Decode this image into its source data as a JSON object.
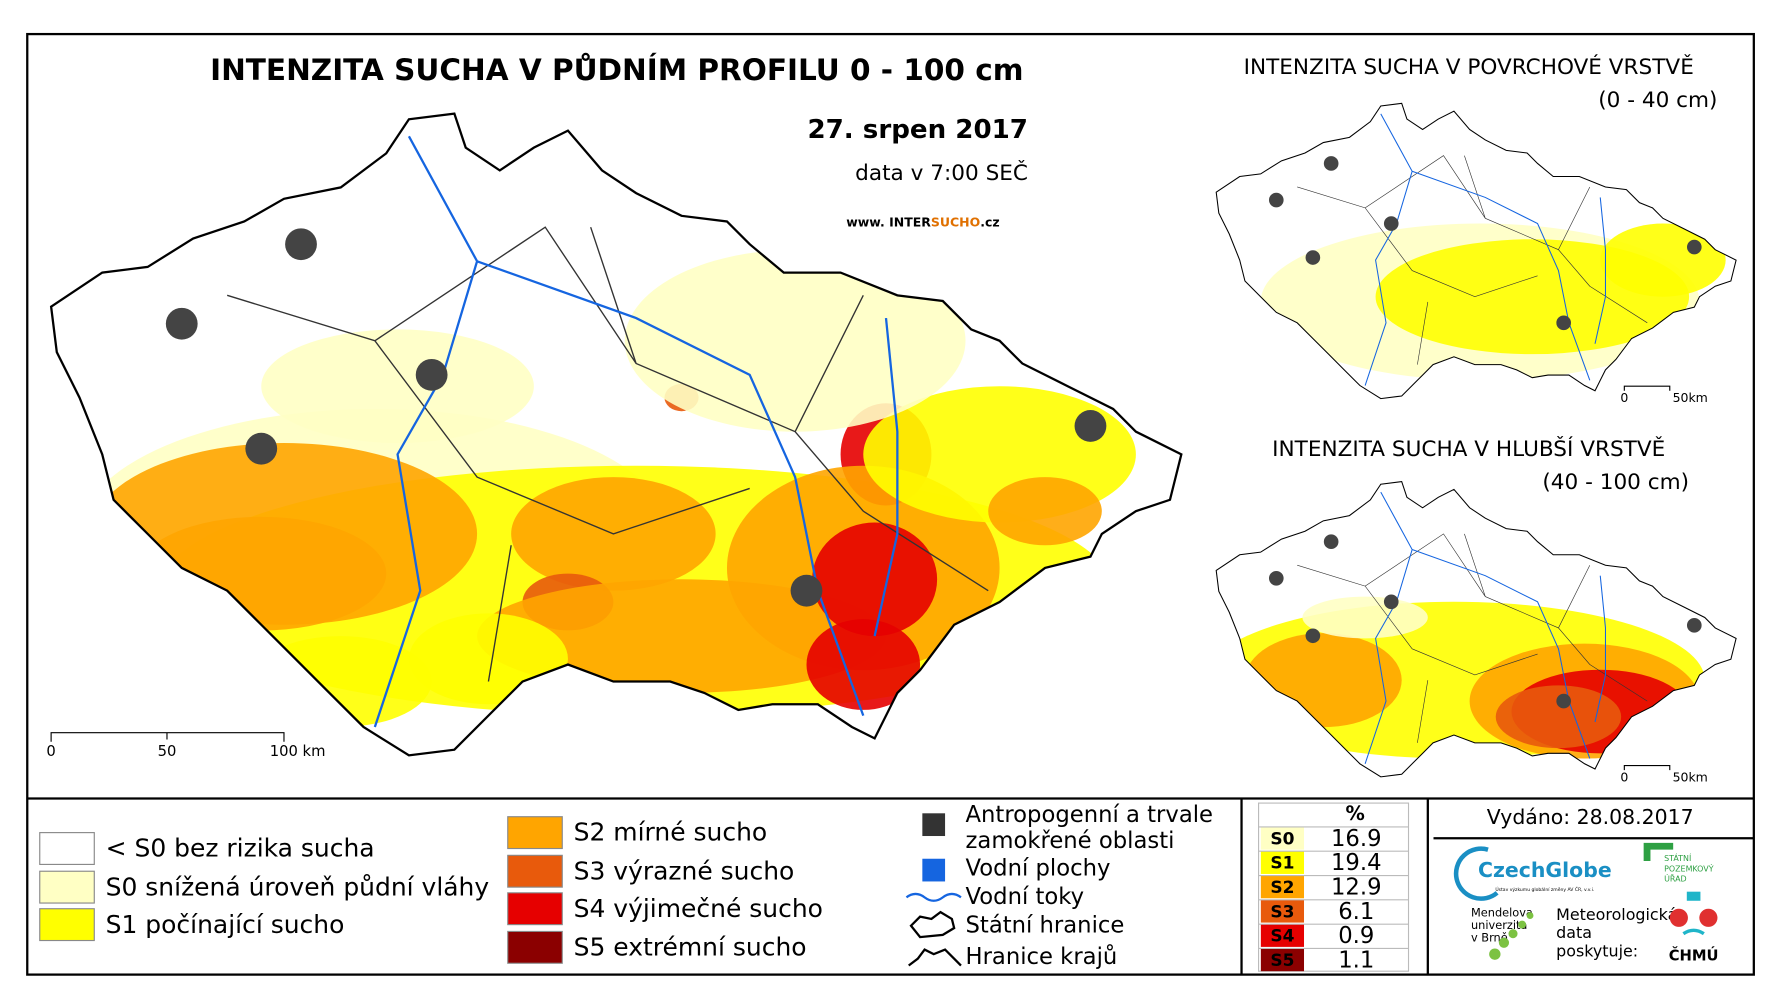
{
  "header": {
    "title": "INTENZITA SUCHA V PŮDNÍM PROFILU 0 - 100 cm",
    "date": "27. srpen 2017",
    "time_note": "data v 7:00 SEČ",
    "website": [
      "www. INTER",
      "SUCHO",
      ".cz"
    ]
  },
  "main_map": {
    "scale_bar": [
      "0",
      "50",
      "100 km"
    ]
  },
  "insets": [
    {
      "title": "INTENZITA SUCHA V POVRCHOVÉ VRSTVĚ",
      "subtitle": "(0 - 40 cm)",
      "scale_bar": [
        "0",
        "50km"
      ]
    },
    {
      "title": "INTENZITA SUCHA V HLUBŠÍ VRSTVĚ",
      "subtitle": "(40 - 100 cm)",
      "scale_bar": [
        "0",
        "50km"
      ]
    }
  ],
  "legend": {
    "drought_classes": [
      {
        "label": "< S0 bez rizika sucha",
        "color": "#ffffff"
      },
      {
        "label": "S0 snížená úroveň půdní vláhy",
        "color": "#ffffc4"
      },
      {
        "label": "S1 počínající sucho",
        "color": "#ffff00"
      },
      {
        "label": "S2 mírné sucho",
        "color": "#ffa500"
      },
      {
        "label": "S3 výrazné sucho",
        "color": "#e85a0c"
      },
      {
        "label": "S4 výjimečné sucho",
        "color": "#e60000"
      },
      {
        "label": "S5 extrémní sucho",
        "color": "#8b0000"
      }
    ],
    "other": [
      {
        "label": [
          "Antropogenní a trvale",
          "zamokřené oblasti"
        ]
      },
      {
        "label": [
          "Vodní plochy"
        ]
      },
      {
        "label": [
          "Vodní toky"
        ]
      },
      {
        "label": [
          "Státní hranice"
        ]
      },
      {
        "label": [
          "Hranice krajů"
        ]
      }
    ]
  },
  "table": {
    "header": "%",
    "rows": [
      [
        "S0",
        16.9
      ],
      [
        "S1",
        19.4
      ],
      [
        "S2",
        12.9
      ],
      [
        "S3",
        6.1
      ],
      [
        "S4",
        0.9
      ],
      [
        "S5",
        1.1
      ]
    ]
  },
  "footer": {
    "issued": "Vydáno: 28.08.2017",
    "czechglobe": "CzechGlobe",
    "czechglobe_sub": "Ústav výzkumu globální změny AV ČR, v.v.i.",
    "spu": [
      "STÁTNÍ",
      "POZEMKOVÝ",
      "ÚŘAD"
    ],
    "mendelu": [
      "Mendelova",
      "univerzita",
      "v Brně"
    ],
    "met": [
      "Meteorologická",
      "data",
      "poskytuje:"
    ],
    "chmu": "ČHMÚ"
  }
}
